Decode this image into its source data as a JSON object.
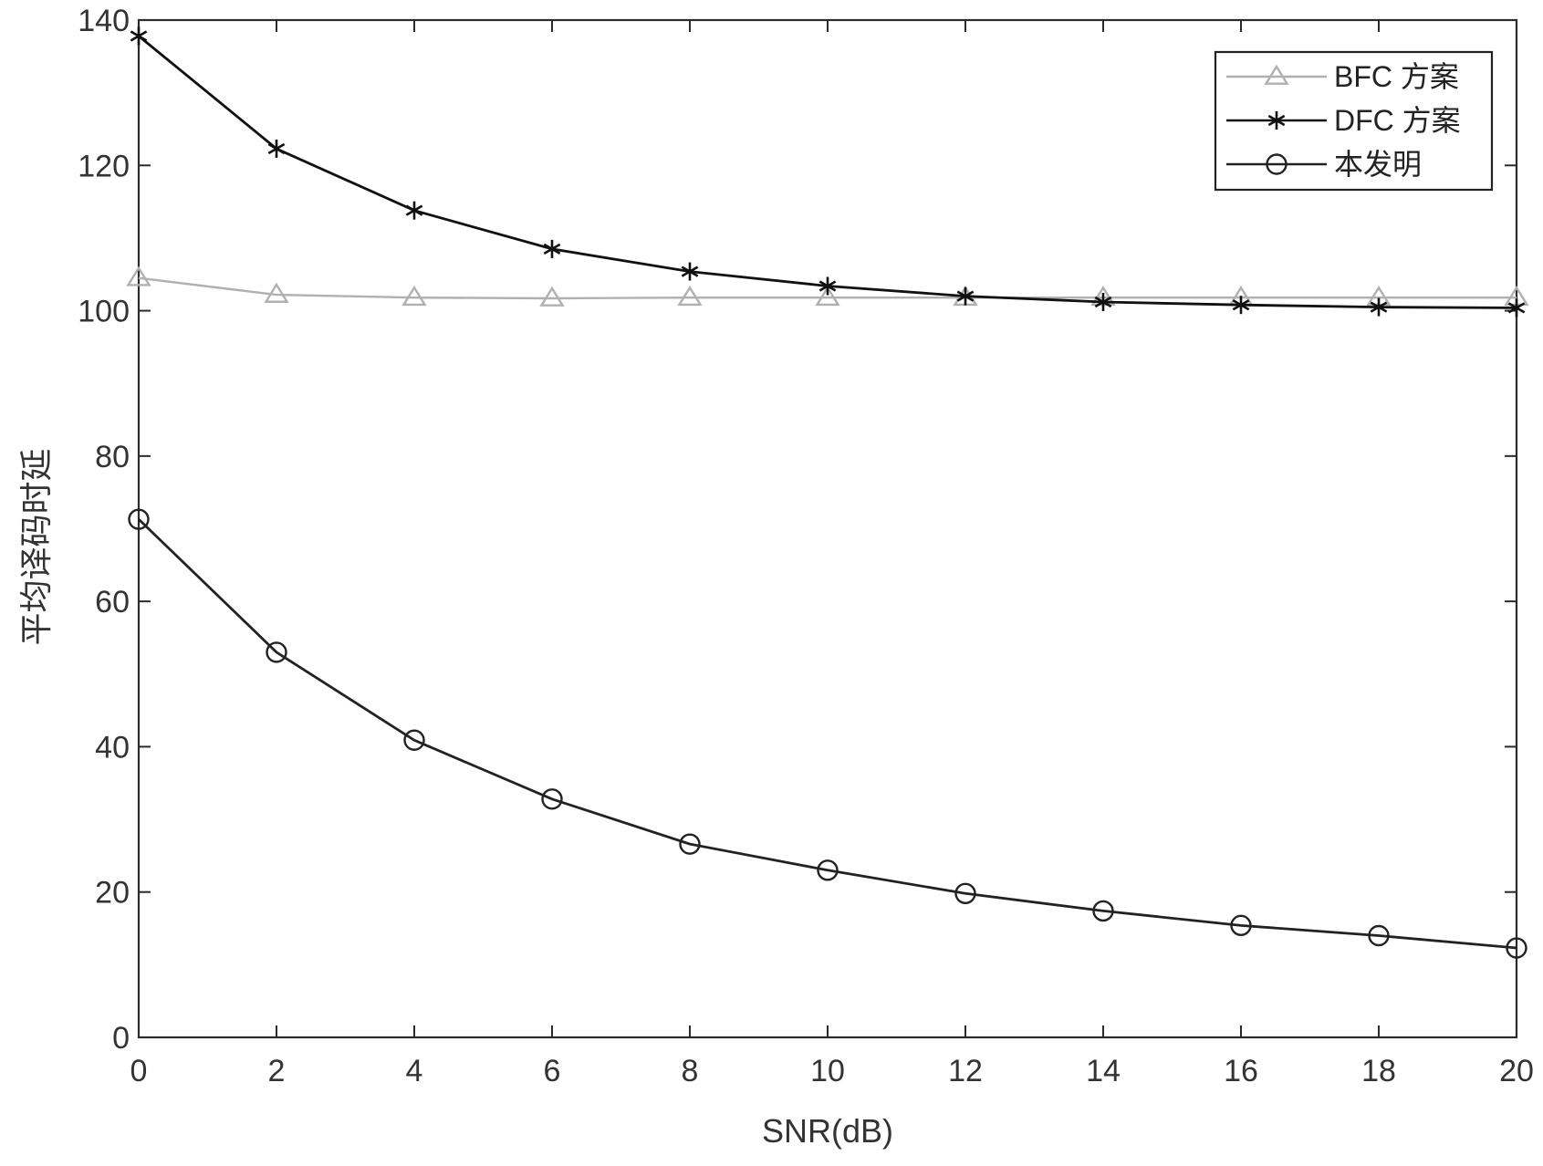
{
  "chart_data": {
    "type": "line",
    "title": "",
    "xlabel": "SNR(dB)",
    "ylabel": "平均译码时延",
    "xlim": [
      0,
      20
    ],
    "ylim": [
      0,
      140
    ],
    "x": [
      0,
      2,
      4,
      6,
      8,
      10,
      12,
      14,
      16,
      18,
      20
    ],
    "x_ticks": [
      "0",
      "2",
      "4",
      "6",
      "8",
      "10",
      "12",
      "14",
      "16",
      "18",
      "20"
    ],
    "y_ticks": [
      "0",
      "20",
      "40",
      "60",
      "80",
      "100",
      "120",
      "140"
    ],
    "grid": false,
    "legend_position": "top-right",
    "series": [
      {
        "name": "BFC 方案",
        "marker": "triangle",
        "color": "#b0b0b0",
        "values": [
          104.5,
          102.2,
          101.8,
          101.7,
          101.8,
          101.8,
          101.8,
          101.8,
          101.8,
          101.8,
          101.8
        ]
      },
      {
        "name": "DFC 方案",
        "marker": "asterisk",
        "color": "#111111",
        "values": [
          137.8,
          122.3,
          113.8,
          108.5,
          105.4,
          103.4,
          102.0,
          101.2,
          100.8,
          100.5,
          100.4
        ]
      },
      {
        "name": "本发明",
        "marker": "circle",
        "color": "#222222",
        "values": [
          71.3,
          53.0,
          40.9,
          32.8,
          26.6,
          23.0,
          19.8,
          17.4,
          15.4,
          14.0,
          12.3
        ]
      }
    ]
  }
}
